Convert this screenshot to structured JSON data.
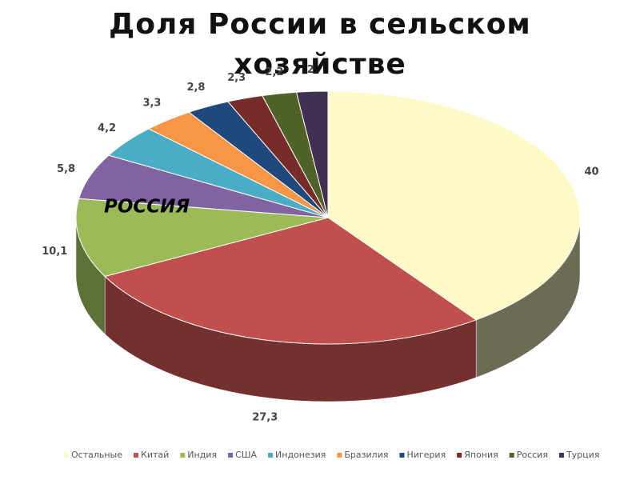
{
  "chart_data": {
    "type": "pie3d",
    "title": "Доля России в сельском хозяйстве",
    "annotation": "РОССИЯ",
    "categories": [
      "Остальные",
      "Китай",
      "Индия",
      "США",
      "Индонезия",
      "Бразилия",
      "Нигерия",
      "Япония",
      "Россия",
      "Турция"
    ],
    "values": [
      40,
      27.3,
      10.1,
      5.8,
      4.2,
      3.3,
      2.8,
      2.3,
      2.2,
      2
    ],
    "value_labels": [
      "40",
      "27,3",
      "10,1",
      "5,8",
      "4,2",
      "3,3",
      "2,8",
      "2,3",
      "2,2",
      "2"
    ],
    "colors": [
      "#fdfac8",
      "#c0504d",
      "#9bbb59",
      "#8064a2",
      "#4bacc6",
      "#f79646",
      "#1f497d",
      "#772c2a",
      "#4f6228",
      "#403152"
    ],
    "legend": "bottom"
  }
}
